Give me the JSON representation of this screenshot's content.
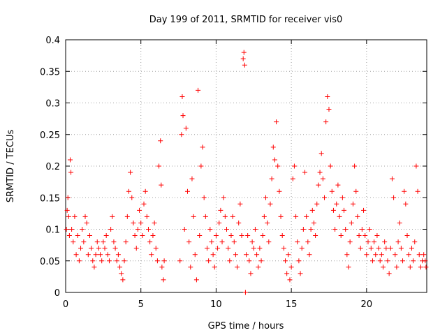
{
  "chart_data": {
    "type": "scatter",
    "title": "Day 199 of 2011, SRMTID for receiver vis0",
    "xlabel": "GPS time / hours",
    "ylabel": "SRMTID / TECUs",
    "xlim": [
      0,
      24
    ],
    "ylim": [
      0,
      0.4
    ],
    "grid": true,
    "marker": "+",
    "color": "#ff0000",
    "xticks": [
      0,
      5,
      10,
      15,
      20
    ],
    "xtick_labels": [
      "0",
      "5",
      "10",
      "15",
      "20"
    ],
    "yticks": [
      0,
      0.05,
      0.1,
      0.15,
      0.2,
      0.25,
      0.3,
      0.35,
      0.4
    ],
    "ytick_labels": [
      "0",
      "0.05",
      "0.1",
      "0.15",
      "0.2",
      "0.25",
      "0.3",
      "0.35",
      "0.4"
    ],
    "series": [
      {
        "name": "vis0",
        "points": [
          [
            0.05,
            0.1
          ],
          [
            0.1,
            0.13
          ],
          [
            0.15,
            0.15
          ],
          [
            0.2,
            0.12
          ],
          [
            0.25,
            0.09
          ],
          [
            0.3,
            0.21
          ],
          [
            0.35,
            0.19
          ],
          [
            0.4,
            0.1
          ],
          [
            0.5,
            0.08
          ],
          [
            0.6,
            0.12
          ],
          [
            0.7,
            0.06
          ],
          [
            0.8,
            0.09
          ],
          [
            0.9,
            0.05
          ],
          [
            1.0,
            0.07
          ],
          [
            1.1,
            0.1
          ],
          [
            1.2,
            0.08
          ],
          [
            1.3,
            0.12
          ],
          [
            1.4,
            0.11
          ],
          [
            1.5,
            0.06
          ],
          [
            1.6,
            0.09
          ],
          [
            1.7,
            0.07
          ],
          [
            1.8,
            0.05
          ],
          [
            1.9,
            0.04
          ],
          [
            2.0,
            0.06
          ],
          [
            2.1,
            0.08
          ],
          [
            2.2,
            0.07
          ],
          [
            2.3,
            0.06
          ],
          [
            2.4,
            0.05
          ],
          [
            2.5,
            0.08
          ],
          [
            2.6,
            0.07
          ],
          [
            2.7,
            0.09
          ],
          [
            2.8,
            0.06
          ],
          [
            2.9,
            0.05
          ],
          [
            3.0,
            0.1
          ],
          [
            3.1,
            0.12
          ],
          [
            3.2,
            0.08
          ],
          [
            3.3,
            0.07
          ],
          [
            3.4,
            0.05
          ],
          [
            3.5,
            0.06
          ],
          [
            3.6,
            0.04
          ],
          [
            3.7,
            0.03
          ],
          [
            3.8,
            0.02
          ],
          [
            3.9,
            0.05
          ],
          [
            4.0,
            0.08
          ],
          [
            4.1,
            0.12
          ],
          [
            4.2,
            0.16
          ],
          [
            4.3,
            0.19
          ],
          [
            4.4,
            0.15
          ],
          [
            4.5,
            0.11
          ],
          [
            4.6,
            0.09
          ],
          [
            4.7,
            0.07
          ],
          [
            4.8,
            0.1
          ],
          [
            4.9,
            0.13
          ],
          [
            5.0,
            0.11
          ],
          [
            5.1,
            0.09
          ],
          [
            5.2,
            0.14
          ],
          [
            5.3,
            0.16
          ],
          [
            5.4,
            0.12
          ],
          [
            5.5,
            0.1
          ],
          [
            5.6,
            0.08
          ],
          [
            5.7,
            0.06
          ],
          [
            5.8,
            0.09
          ],
          [
            5.9,
            0.11
          ],
          [
            6.0,
            0.07
          ],
          [
            6.1,
            0.05
          ],
          [
            6.2,
            0.2
          ],
          [
            6.3,
            0.24
          ],
          [
            6.35,
            0.17
          ],
          [
            6.4,
            0.04
          ],
          [
            6.5,
            0.02
          ],
          [
            6.55,
            0.05
          ],
          [
            7.6,
            0.05
          ],
          [
            7.7,
            0.25
          ],
          [
            7.75,
            0.31
          ],
          [
            7.8,
            0.28
          ],
          [
            7.9,
            0.1
          ],
          [
            8.0,
            0.26
          ],
          [
            8.1,
            0.16
          ],
          [
            8.2,
            0.08
          ],
          [
            8.3,
            0.04
          ],
          [
            8.4,
            0.18
          ],
          [
            8.5,
            0.12
          ],
          [
            8.6,
            0.06
          ],
          [
            8.7,
            0.02
          ],
          [
            8.8,
            0.32
          ],
          [
            8.9,
            0.09
          ],
          [
            9.0,
            0.2
          ],
          [
            9.1,
            0.23
          ],
          [
            9.2,
            0.15
          ],
          [
            9.3,
            0.12
          ],
          [
            9.4,
            0.07
          ],
          [
            9.5,
            0.05
          ],
          [
            9.6,
            0.1
          ],
          [
            9.7,
            0.08
          ],
          [
            9.8,
            0.06
          ],
          [
            9.9,
            0.04
          ],
          [
            10.0,
            0.09
          ],
          [
            10.1,
            0.07
          ],
          [
            10.2,
            0.11
          ],
          [
            10.3,
            0.13
          ],
          [
            10.4,
            0.08
          ],
          [
            10.5,
            0.15
          ],
          [
            10.6,
            0.12
          ],
          [
            10.7,
            0.1
          ],
          [
            10.8,
            0.07
          ],
          [
            10.9,
            0.05
          ],
          [
            11.0,
            0.09
          ],
          [
            11.1,
            0.12
          ],
          [
            11.2,
            0.08
          ],
          [
            11.3,
            0.06
          ],
          [
            11.4,
            0.04
          ],
          [
            11.5,
            0.11
          ],
          [
            11.6,
            0.14
          ],
          [
            11.7,
            0.09
          ],
          [
            11.8,
            0.37
          ],
          [
            11.85,
            0.38
          ],
          [
            11.9,
            0.36
          ],
          [
            11.95,
            0.0
          ],
          [
            12.0,
            0.06
          ],
          [
            12.1,
            0.09
          ],
          [
            12.2,
            0.05
          ],
          [
            12.3,
            0.03
          ],
          [
            12.4,
            0.08
          ],
          [
            12.5,
            0.07
          ],
          [
            12.6,
            0.1
          ],
          [
            12.7,
            0.06
          ],
          [
            12.8,
            0.04
          ],
          [
            12.9,
            0.07
          ],
          [
            13.0,
            0.05
          ],
          [
            13.1,
            0.09
          ],
          [
            13.2,
            0.12
          ],
          [
            13.3,
            0.15
          ],
          [
            13.4,
            0.11
          ],
          [
            13.5,
            0.08
          ],
          [
            13.6,
            0.14
          ],
          [
            13.7,
            0.18
          ],
          [
            13.8,
            0.23
          ],
          [
            13.9,
            0.21
          ],
          [
            14.0,
            0.27
          ],
          [
            14.1,
            0.2
          ],
          [
            14.2,
            0.16
          ],
          [
            14.3,
            0.12
          ],
          [
            14.4,
            0.09
          ],
          [
            14.5,
            0.07
          ],
          [
            14.6,
            0.05
          ],
          [
            14.7,
            0.03
          ],
          [
            14.8,
            0.06
          ],
          [
            14.9,
            0.02
          ],
          [
            15.0,
            0.04
          ],
          [
            15.1,
            0.18
          ],
          [
            15.2,
            0.2
          ],
          [
            15.3,
            0.12
          ],
          [
            15.4,
            0.08
          ],
          [
            15.5,
            0.05
          ],
          [
            15.6,
            0.03
          ],
          [
            15.7,
            0.07
          ],
          [
            15.8,
            0.1
          ],
          [
            15.9,
            0.19
          ],
          [
            16.0,
            0.12
          ],
          [
            16.1,
            0.08
          ],
          [
            16.2,
            0.06
          ],
          [
            16.3,
            0.1
          ],
          [
            16.4,
            0.13
          ],
          [
            16.5,
            0.11
          ],
          [
            16.6,
            0.09
          ],
          [
            16.7,
            0.14
          ],
          [
            16.8,
            0.17
          ],
          [
            16.9,
            0.19
          ],
          [
            17.0,
            0.22
          ],
          [
            17.1,
            0.18
          ],
          [
            17.2,
            0.15
          ],
          [
            17.3,
            0.27
          ],
          [
            17.4,
            0.31
          ],
          [
            17.5,
            0.29
          ],
          [
            17.6,
            0.2
          ],
          [
            17.7,
            0.16
          ],
          [
            17.8,
            0.13
          ],
          [
            17.9,
            0.1
          ],
          [
            18.0,
            0.14
          ],
          [
            18.1,
            0.17
          ],
          [
            18.2,
            0.12
          ],
          [
            18.3,
            0.09
          ],
          [
            18.4,
            0.15
          ],
          [
            18.5,
            0.13
          ],
          [
            18.6,
            0.1
          ],
          [
            18.7,
            0.06
          ],
          [
            18.8,
            0.04
          ],
          [
            18.9,
            0.08
          ],
          [
            19.0,
            0.11
          ],
          [
            19.1,
            0.14
          ],
          [
            19.2,
            0.2
          ],
          [
            19.3,
            0.16
          ],
          [
            19.4,
            0.12
          ],
          [
            19.5,
            0.09
          ],
          [
            19.6,
            0.07
          ],
          [
            19.7,
            0.1
          ],
          [
            19.8,
            0.13
          ],
          [
            19.9,
            0.09
          ],
          [
            20.0,
            0.06
          ],
          [
            20.1,
            0.08
          ],
          [
            20.2,
            0.1
          ],
          [
            20.3,
            0.07
          ],
          [
            20.4,
            0.05
          ],
          [
            20.5,
            0.08
          ],
          [
            20.6,
            0.06
          ],
          [
            20.7,
            0.09
          ],
          [
            20.8,
            0.07
          ],
          [
            20.9,
            0.05
          ],
          [
            21.0,
            0.06
          ],
          [
            21.1,
            0.04
          ],
          [
            21.2,
            0.08
          ],
          [
            21.3,
            0.07
          ],
          [
            21.4,
            0.05
          ],
          [
            21.5,
            0.03
          ],
          [
            21.6,
            0.07
          ],
          [
            21.7,
            0.18
          ],
          [
            21.8,
            0.15
          ],
          [
            21.9,
            0.06
          ],
          [
            22.0,
            0.04
          ],
          [
            22.1,
            0.08
          ],
          [
            22.2,
            0.11
          ],
          [
            22.3,
            0.07
          ],
          [
            22.4,
            0.05
          ],
          [
            22.5,
            0.16
          ],
          [
            22.6,
            0.14
          ],
          [
            22.7,
            0.09
          ],
          [
            22.8,
            0.06
          ],
          [
            22.9,
            0.04
          ],
          [
            23.0,
            0.07
          ],
          [
            23.1,
            0.05
          ],
          [
            23.2,
            0.08
          ],
          [
            23.3,
            0.2
          ],
          [
            23.4,
            0.16
          ],
          [
            23.5,
            0.06
          ],
          [
            23.6,
            0.04
          ],
          [
            23.7,
            0.05
          ],
          [
            23.8,
            0.06
          ],
          [
            23.9,
            0.05
          ],
          [
            23.95,
            0.04
          ]
        ]
      }
    ]
  }
}
